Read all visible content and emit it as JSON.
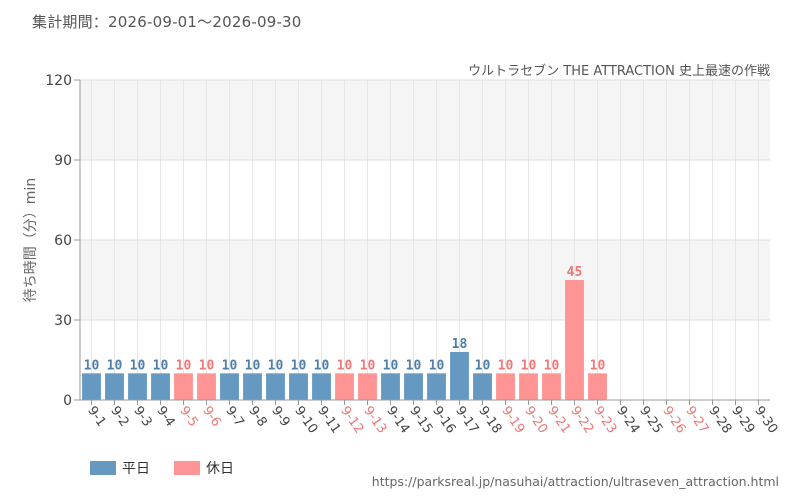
{
  "header": {
    "period_label": "集計期間：2026-09-01～2026-09-30"
  },
  "source": "https://parksreal.jp/nasuhai/attraction/ultraseven_attraction.html",
  "colors": {
    "weekday": "#6699c2",
    "holiday": "#ff9494",
    "holiday_label": "#ee7777",
    "weekday_label": "#4f7fa8"
  },
  "chart_data": {
    "type": "bar",
    "title": "ウルトラセブン THE ATTRACTION 史上最速の作戦",
    "ylabel": "待ち時間（分）min",
    "xlabel": "",
    "ylim": [
      0,
      120
    ],
    "yticks": [
      0,
      30,
      60,
      90,
      120
    ],
    "grid": true,
    "legend_position": "bottom-left",
    "categories": [
      "9-1",
      "9-2",
      "9-3",
      "9-4",
      "9-5",
      "9-6",
      "9-7",
      "9-8",
      "9-9",
      "9-10",
      "9-11",
      "9-12",
      "9-13",
      "9-14",
      "9-15",
      "9-16",
      "9-17",
      "9-18",
      "9-19",
      "9-20",
      "9-21",
      "9-22",
      "9-23",
      "9-24",
      "9-25",
      "9-26",
      "9-27",
      "9-28",
      "9-29",
      "9-30"
    ],
    "day_type": [
      "weekday",
      "weekday",
      "weekday",
      "weekday",
      "holiday",
      "holiday",
      "weekday",
      "weekday",
      "weekday",
      "weekday",
      "weekday",
      "holiday",
      "holiday",
      "weekday",
      "weekday",
      "weekday",
      "weekday",
      "weekday",
      "holiday",
      "holiday",
      "holiday",
      "holiday",
      "holiday",
      "weekday",
      "weekday",
      "holiday",
      "holiday",
      "weekday",
      "weekday",
      "weekday"
    ],
    "values": [
      10,
      10,
      10,
      10,
      10,
      10,
      10,
      10,
      10,
      10,
      10,
      10,
      10,
      10,
      10,
      10,
      18,
      10,
      10,
      10,
      10,
      45,
      10,
      null,
      null,
      null,
      null,
      null,
      null,
      null
    ],
    "series": [
      {
        "name": "平日",
        "key": "weekday"
      },
      {
        "name": "休日",
        "key": "holiday"
      }
    ]
  }
}
